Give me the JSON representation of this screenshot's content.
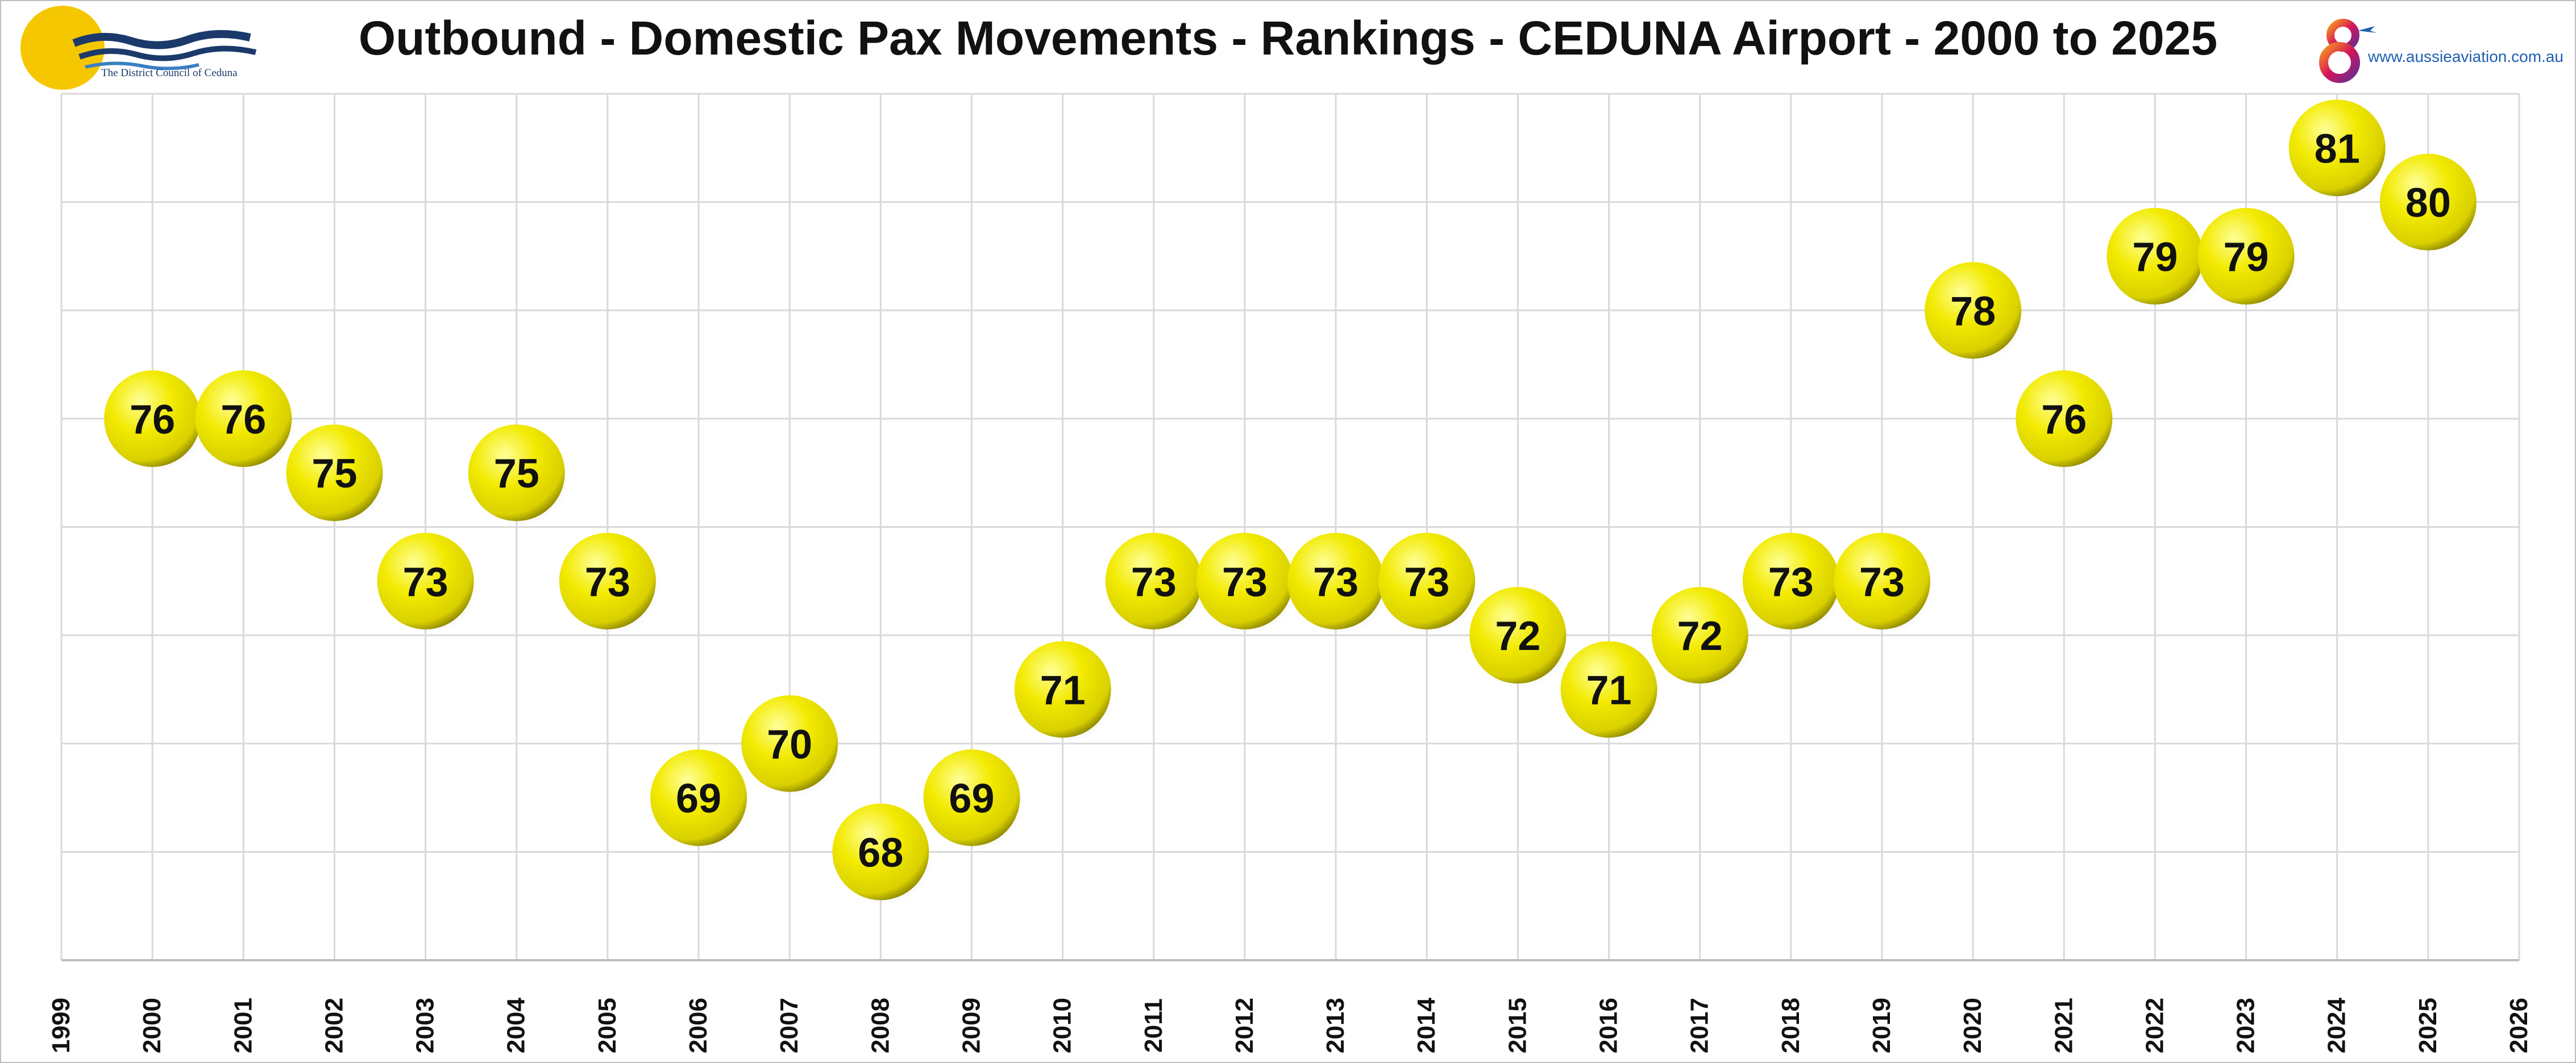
{
  "title": "Outbound - Domestic Pax Movements - Rankings - CEDUNA Airport - 2000 to 2025",
  "logos": {
    "left_text": "The District Council of Ceduna",
    "right_url": "www.aussieaviation.com.au"
  },
  "colors": {
    "bubble": "#f2ea00",
    "bubble_highlight": "#ffff9a",
    "bubble_shadow": "#8c8600",
    "grid": "#d9d9d9",
    "label": "#111111",
    "logo_sun": "#f5c700",
    "logo_wave": "#1b3a6b",
    "logo_brand": "#d4145a"
  },
  "chart_data": {
    "type": "scatter",
    "title": "Outbound - Domestic Pax Movements - Rankings - CEDUNA Airport - 2000 to 2025",
    "xlabel": "",
    "ylabel": "",
    "xlim": [
      1999,
      2026
    ],
    "ylim": [
      66,
      82
    ],
    "y_inverted": false,
    "grid": true,
    "y_tick_labels_shown": false,
    "x_ticks": [
      1999,
      2000,
      2001,
      2002,
      2003,
      2004,
      2005,
      2006,
      2007,
      2008,
      2009,
      2010,
      2011,
      2012,
      2013,
      2014,
      2015,
      2016,
      2017,
      2018,
      2019,
      2020,
      2021,
      2022,
      2023,
      2024,
      2025,
      2026
    ],
    "x": [
      2000,
      2001,
      2002,
      2003,
      2004,
      2005,
      2006,
      2007,
      2008,
      2009,
      2010,
      2011,
      2012,
      2013,
      2014,
      2015,
      2016,
      2017,
      2018,
      2019,
      2020,
      2021,
      2022,
      2023,
      2024,
      2025
    ],
    "values": [
      76,
      76,
      75,
      73,
      75,
      73,
      69,
      70,
      68,
      69,
      71,
      73,
      73,
      73,
      73,
      72,
      71,
      72,
      73,
      73,
      78,
      76,
      79,
      79,
      81,
      80
    ],
    "data_labels": [
      "76",
      "76",
      "75",
      "73",
      "75",
      "73",
      "69",
      "70",
      "68",
      "69",
      "71",
      "73",
      "73",
      "73",
      "73",
      "72",
      "71",
      "72",
      "73",
      "73",
      "78",
      "76",
      "79",
      "79",
      "81",
      "80"
    ]
  }
}
